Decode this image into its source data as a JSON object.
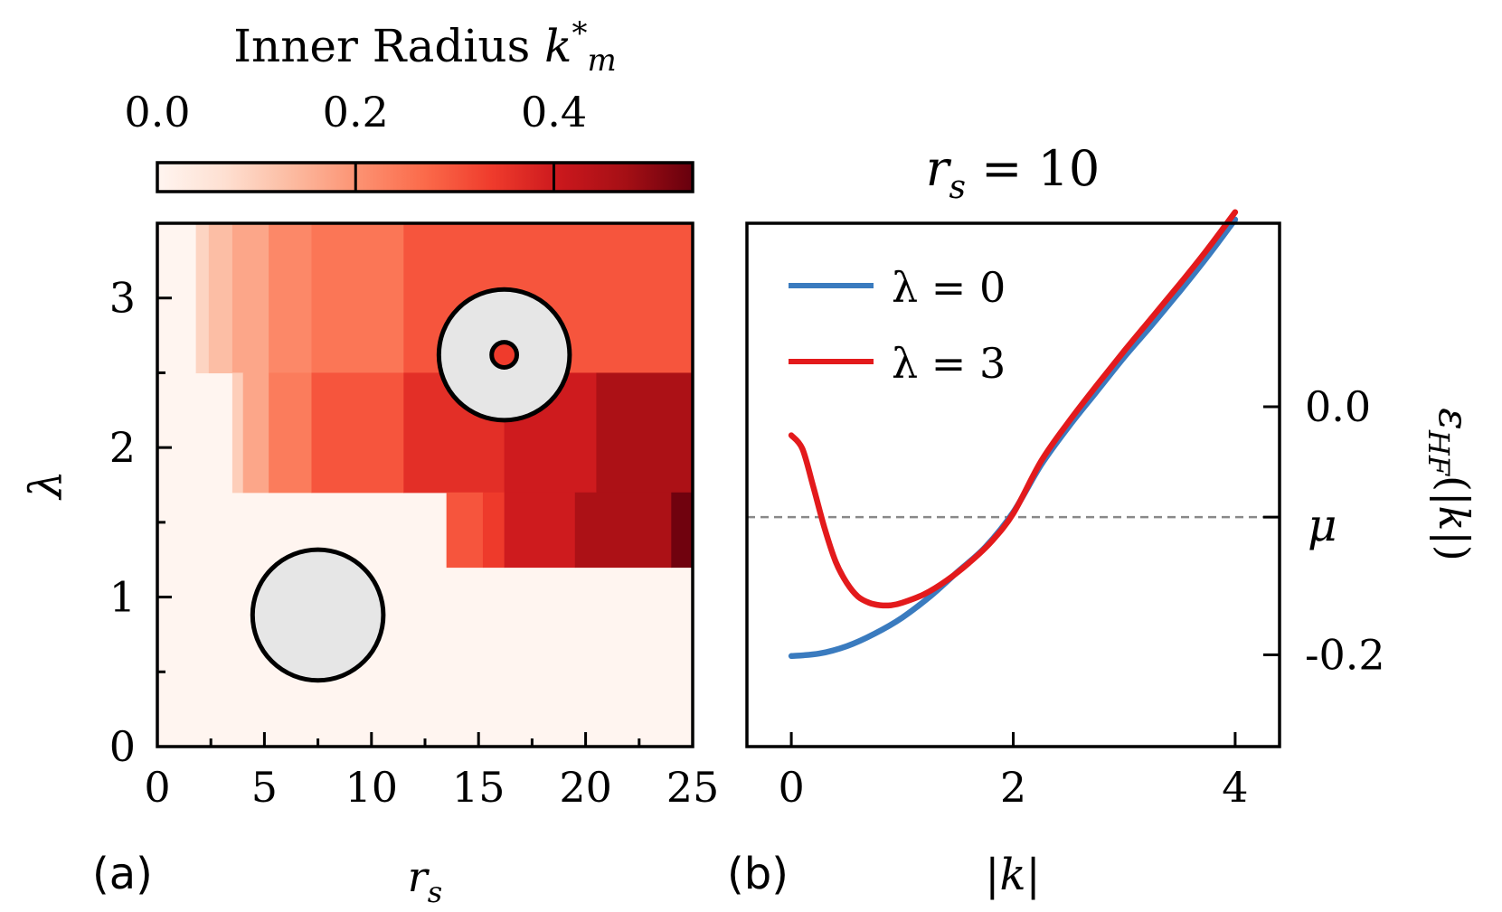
{
  "chart_data": [
    {
      "type": "heatmap",
      "panel_label": "(a)",
      "xlabel": "r_s",
      "ylabel": "λ",
      "xlim": [
        0,
        25
      ],
      "ylim": [
        0,
        3.5
      ],
      "x_ticks": [
        "0",
        "5",
        "10",
        "15",
        "20",
        "25"
      ],
      "y_ticks": [
        "0",
        "1",
        "2",
        "3"
      ],
      "colorbar": {
        "title": "Inner Radius k*_m",
        "ticks": [
          "0.0",
          "0.2",
          "0.4"
        ],
        "range": [
          0,
          0.54
        ],
        "colormap": "Reds"
      },
      "cells": [
        {
          "x0": 0,
          "x1": 25,
          "y0": 0,
          "y1": 3.5,
          "value": 0.0
        },
        {
          "x0": 1.8,
          "x1": 2.4,
          "y0": 2.5,
          "y1": 3.5,
          "value": 0.09
        },
        {
          "x0": 2.4,
          "x1": 3.5,
          "y0": 2.5,
          "y1": 3.5,
          "value": 0.13
        },
        {
          "x0": 3.5,
          "x1": 5.2,
          "y0": 2.5,
          "y1": 3.5,
          "value": 0.17
        },
        {
          "x0": 5.2,
          "x1": 7.2,
          "y0": 2.5,
          "y1": 3.5,
          "value": 0.22
        },
        {
          "x0": 7.2,
          "x1": 11.5,
          "y0": 2.5,
          "y1": 3.5,
          "value": 0.25
        },
        {
          "x0": 11.5,
          "x1": 25,
          "y0": 2.5,
          "y1": 3.5,
          "value": 0.3
        },
        {
          "x0": 3.5,
          "x1": 4.0,
          "y0": 1.7,
          "y1": 2.5,
          "value": 0.1
        },
        {
          "x0": 4.0,
          "x1": 5.2,
          "y0": 1.7,
          "y1": 2.5,
          "value": 0.17
        },
        {
          "x0": 5.2,
          "x1": 7.2,
          "y0": 1.7,
          "y1": 2.5,
          "value": 0.24
        },
        {
          "x0": 7.2,
          "x1": 11.5,
          "y0": 1.7,
          "y1": 2.5,
          "value": 0.3
        },
        {
          "x0": 11.5,
          "x1": 16.2,
          "y0": 1.7,
          "y1": 2.5,
          "value": 0.36
        },
        {
          "x0": 16.2,
          "x1": 20.5,
          "y0": 1.7,
          "y1": 2.5,
          "value": 0.4
        },
        {
          "x0": 20.5,
          "x1": 25,
          "y0": 1.7,
          "y1": 2.5,
          "value": 0.46
        },
        {
          "x0": 13.5,
          "x1": 15.2,
          "y0": 1.2,
          "y1": 1.7,
          "value": 0.3
        },
        {
          "x0": 15.2,
          "x1": 16.2,
          "y0": 1.2,
          "y1": 1.7,
          "value": 0.34
        },
        {
          "x0": 16.2,
          "x1": 19.5,
          "y0": 1.2,
          "y1": 1.7,
          "value": 0.4
        },
        {
          "x0": 19.5,
          "x1": 24.0,
          "y0": 1.2,
          "y1": 1.7,
          "value": 0.46
        },
        {
          "x0": 24.0,
          "x1": 25,
          "y0": 1.2,
          "y1": 1.7,
          "value": 0.53
        }
      ],
      "insets": [
        {
          "name": "disk",
          "center": [
            7.5,
            0.88
          ],
          "outer_radius": 0.46
        },
        {
          "name": "annulus",
          "center": [
            16.2,
            2.62
          ],
          "outer_radius": 0.46,
          "inner_radius": 0.08
        }
      ]
    },
    {
      "type": "line",
      "panel_label": "(b)",
      "title": "r_s = 10",
      "xlabel": "|k|",
      "ylabel": "ε_HF(|k|)",
      "xlim": [
        -0.4,
        4.4
      ],
      "ylim": [
        -0.274,
        0.148
      ],
      "x_ticks": [
        "0",
        "2",
        "4"
      ],
      "y_ticks": [
        "0.0",
        "-0.2"
      ],
      "mu_label": "μ",
      "mu_value": -0.089,
      "series": [
        {
          "name": "λ = 0",
          "color": "#3a7bbf",
          "x": [
            0,
            0.25,
            0.5,
            0.75,
            1.0,
            1.25,
            1.5,
            1.75,
            2.0,
            2.25,
            2.5,
            2.75,
            3.0,
            3.25,
            3.5,
            3.75,
            4.0
          ],
          "y": [
            -0.201,
            -0.199,
            -0.193,
            -0.183,
            -0.17,
            -0.153,
            -0.133,
            -0.113,
            -0.085,
            -0.047,
            -0.016,
            0.012,
            0.04,
            0.066,
            0.093,
            0.121,
            0.151
          ]
        },
        {
          "name": "λ = 3",
          "color": "#e31a1c",
          "x": [
            0,
            0.1,
            0.2,
            0.3,
            0.4,
            0.5,
            0.6,
            0.7,
            0.8,
            0.9,
            1.0,
            1.2,
            1.4,
            1.6,
            1.8,
            2.0,
            2.25,
            2.5,
            2.75,
            3.0,
            3.25,
            3.5,
            3.75,
            4.0
          ],
          "y": [
            -0.023,
            -0.034,
            -0.065,
            -0.098,
            -0.125,
            -0.142,
            -0.153,
            -0.158,
            -0.16,
            -0.16,
            -0.158,
            -0.151,
            -0.14,
            -0.126,
            -0.109,
            -0.086,
            -0.044,
            -0.012,
            0.017,
            0.045,
            0.072,
            0.099,
            0.127,
            0.157
          ]
        }
      ]
    }
  ]
}
